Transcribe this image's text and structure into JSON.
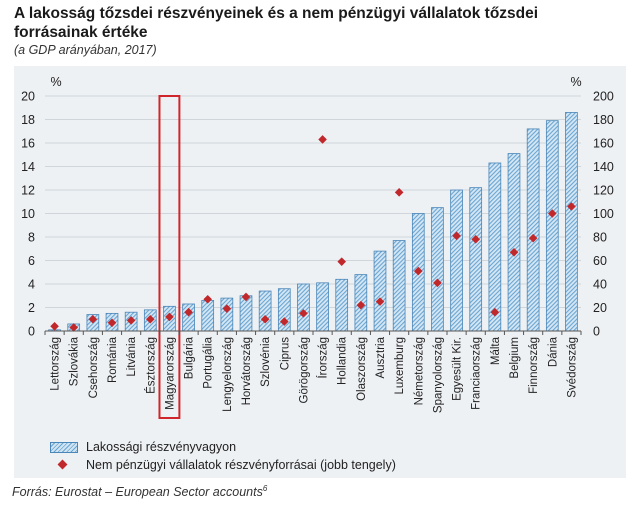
{
  "chart_data": {
    "type": "bar",
    "title": "A lakosság tőzsdei részvényeinek és a nem pénzügyi vállalatok tőzsdei forrásainak értéke",
    "subtitle": "(a GDP arányában, 2017)",
    "source": "Forrás: Eurostat – European Sector accounts",
    "source_footnote": "6",
    "categories": [
      "Lettország",
      "Szlovákia",
      "Csehország",
      "Románia",
      "Litvánia",
      "Észtország",
      "Magyarország",
      "Bulgária",
      "Portugália",
      "Lengyelország",
      "Horvátország",
      "Szlovénia",
      "Ciprus",
      "Görögország",
      "Írország",
      "Hollandia",
      "Olaszország",
      "Ausztria",
      "Luxemburg",
      "Németország",
      "Spanyolország",
      "Egyesült Kir.",
      "Franciaország",
      "Málta",
      "Belgium",
      "Finnország",
      "Dánia",
      "Svédország"
    ],
    "highlight_category": "Magyarország",
    "left_axis": {
      "unit": "%",
      "ylim": [
        0,
        20
      ],
      "ticks": [
        0,
        2,
        4,
        6,
        8,
        10,
        12,
        14,
        16,
        18,
        20
      ]
    },
    "right_axis": {
      "unit": "%",
      "ylim": [
        0,
        200
      ],
      "ticks": [
        0,
        20,
        40,
        60,
        80,
        100,
        120,
        140,
        160,
        180,
        200
      ]
    },
    "grid": true,
    "legend_position": "bottom",
    "series": [
      {
        "name": "Lakossági részvényvagyon",
        "axis": "left",
        "style": "hatched-bar",
        "color": "#6aa5d2",
        "values": [
          0.1,
          0.6,
          1.4,
          1.5,
          1.6,
          1.8,
          2.1,
          2.3,
          2.6,
          2.8,
          3.0,
          3.4,
          3.6,
          4.0,
          4.1,
          4.4,
          4.8,
          6.8,
          7.7,
          10.0,
          10.5,
          12.0,
          12.2,
          14.3,
          15.1,
          17.2,
          17.9,
          18.6
        ]
      },
      {
        "name": "Nem pénzügyi vállalatok részvényforrásai (jobb tengely)",
        "axis": "right",
        "style": "diamond",
        "color": "#c0282c",
        "values": [
          4,
          3,
          10,
          7,
          9,
          10,
          12,
          16,
          27,
          19,
          29,
          10,
          8,
          15,
          163,
          59,
          22,
          25,
          118,
          51,
          41,
          81,
          78,
          16,
          67,
          79,
          100,
          106
        ]
      }
    ]
  }
}
